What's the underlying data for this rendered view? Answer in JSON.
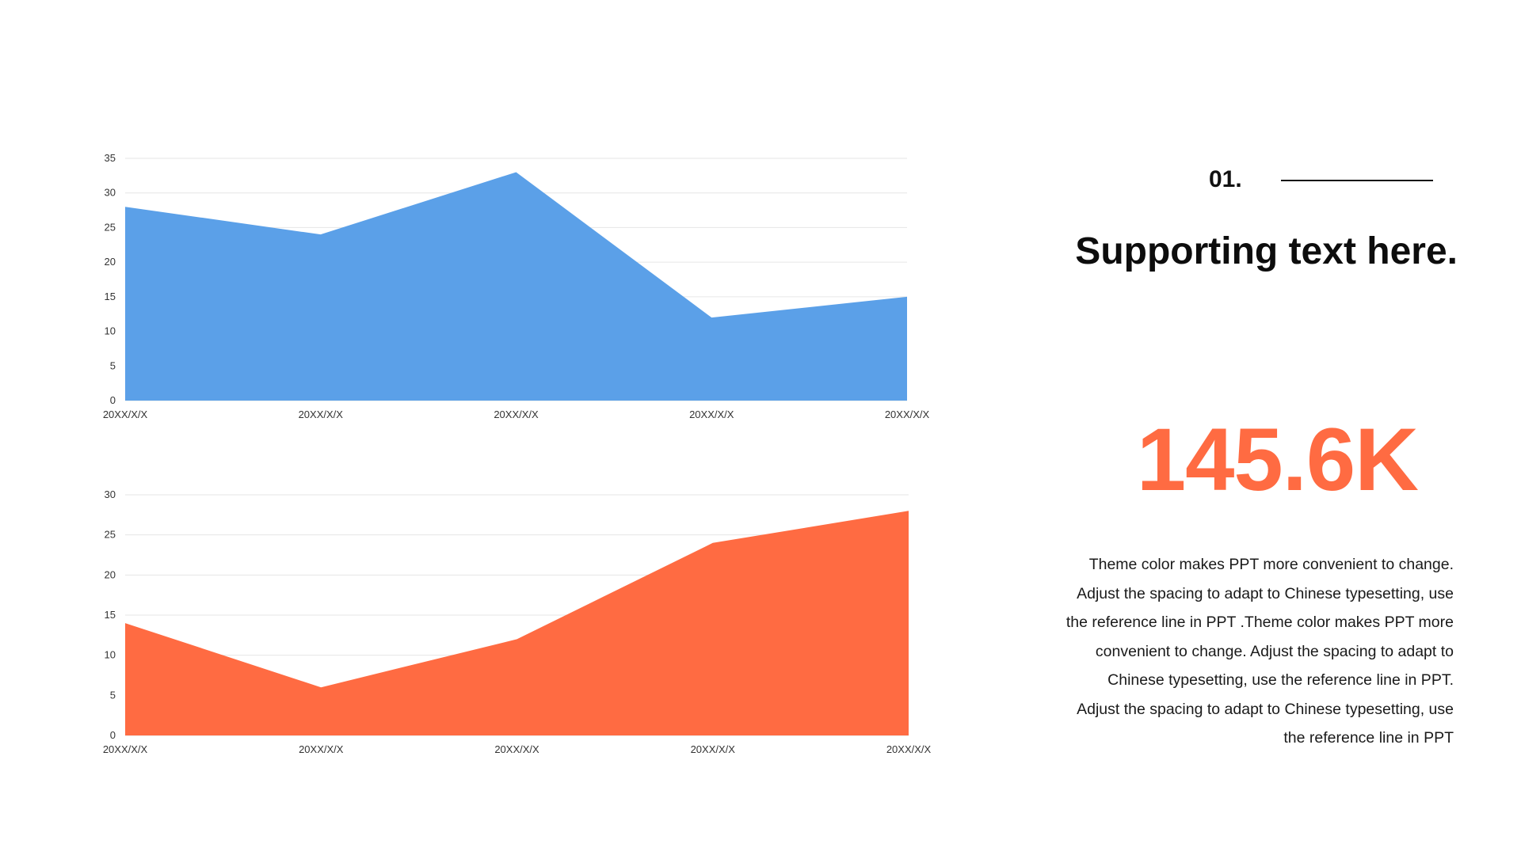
{
  "chart_data": [
    {
      "type": "area",
      "categories": [
        "20XX/X/X",
        "20XX/X/X",
        "20XX/X/X",
        "20XX/X/X",
        "20XX/X/X"
      ],
      "values": [
        28,
        24,
        33,
        12,
        15
      ],
      "ylim": [
        0,
        35
      ],
      "yticks": [
        0,
        5,
        10,
        15,
        20,
        25,
        30,
        35
      ],
      "grid": true,
      "color": "#5BA0E8"
    },
    {
      "type": "area",
      "categories": [
        "20XX/X/X",
        "20XX/X/X",
        "20XX/X/X",
        "20XX/X/X",
        "20XX/X/X"
      ],
      "values": [
        14,
        6,
        12,
        24,
        28
      ],
      "ylim": [
        0,
        30
      ],
      "yticks": [
        0,
        5,
        10,
        15,
        20,
        25,
        30
      ],
      "grid": true,
      "color": "#FF6B42"
    }
  ],
  "panel": {
    "section_number": "01.",
    "headline": "Supporting text here.",
    "stat_value": "145.6K",
    "stat_color": "#FF6B42",
    "body": "Theme color makes PPT more convenient to change. Adjust the spacing to adapt to Chinese typesetting, use the reference line in PPT .Theme color makes PPT more convenient to change. Adjust the spacing to adapt to Chinese typesetting, use the reference line in PPT. Adjust the spacing to adapt to Chinese typesetting, use the reference line in PPT"
  }
}
